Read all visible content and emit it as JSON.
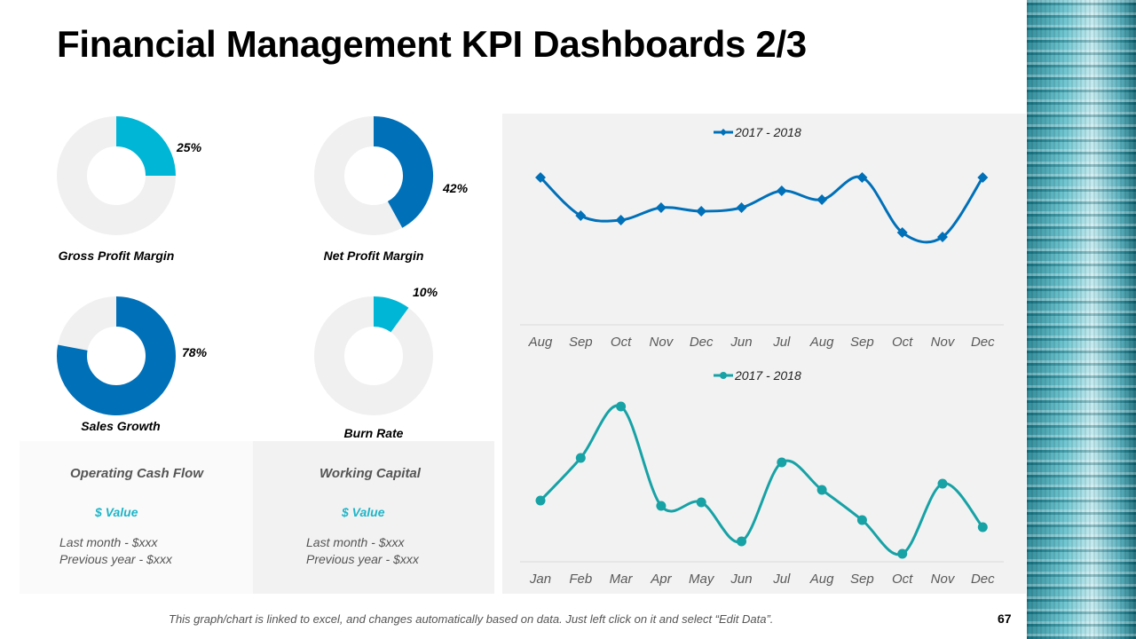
{
  "title": "Financial Management KPI Dashboards 2/3",
  "colors": {
    "dark_blue": "#0070b8",
    "cyan": "#00b6d6",
    "teal": "#17a2a6",
    "donut_track": "#f0f0f0",
    "value_text": "#1fb5c8"
  },
  "donuts": [
    {
      "label": "Gross Profit Margin",
      "value": 25,
      "value_label": "25%",
      "color": "#00b6d6"
    },
    {
      "label": "Net Profit Margin",
      "value": 42,
      "value_label": "42%",
      "color": "#0070b8"
    },
    {
      "label": "Sales Growth",
      "value": 78,
      "value_label": "78%",
      "color": "#0070b8"
    },
    {
      "label": "Burn Rate",
      "value": 10,
      "value_label": "10%",
      "color": "#00b6d6"
    }
  ],
  "boxes": [
    {
      "title": "Operating  Cash Flow",
      "value": "$ Value",
      "last_month": "Last month - $xxx",
      "previous_year": "Previous year - $xxx"
    },
    {
      "title": "Working Capital",
      "value": "$ Value",
      "last_month": "Last month - $xxx",
      "previous_year": "Previous year - $xxx"
    }
  ],
  "chart_data": [
    {
      "type": "line",
      "legend": "top",
      "grid": false,
      "marker": "diamond",
      "color": "#0070b8",
      "categories": [
        "Aug",
        "Sep",
        "Oct",
        "Nov",
        "Dec",
        "Jun",
        "Jul",
        "Aug",
        "Sep",
        "Oct",
        "Nov",
        "Dec"
      ],
      "series": [
        {
          "name": "2017 - 2018",
          "values": [
            83,
            61.5,
            59,
            66,
            64,
            66,
            75.5,
            70.5,
            83,
            52,
            49.5,
            83
          ]
        }
      ],
      "ylim": [
        0,
        100
      ]
    },
    {
      "type": "line",
      "legend": "top",
      "grid": false,
      "marker": "circle",
      "color": "#17a2a6",
      "categories": [
        "Jan",
        "Feb",
        "Mar",
        "Apr",
        "May",
        "Jun",
        "Jul",
        "Aug",
        "Sep",
        "Oct",
        "Nov",
        "Dec"
      ],
      "series": [
        {
          "name": "2017 - 2018",
          "values": [
            34.5,
            58.5,
            87.5,
            31.5,
            33.5,
            11.5,
            56,
            40.5,
            23.5,
            4.5,
            44,
            19.5
          ]
        }
      ],
      "ylim": [
        0,
        100
      ]
    }
  ],
  "footer": "This graph/chart is linked to excel, and changes automatically based on data. Just left click on it and select “Edit Data”.",
  "page_number": "67"
}
